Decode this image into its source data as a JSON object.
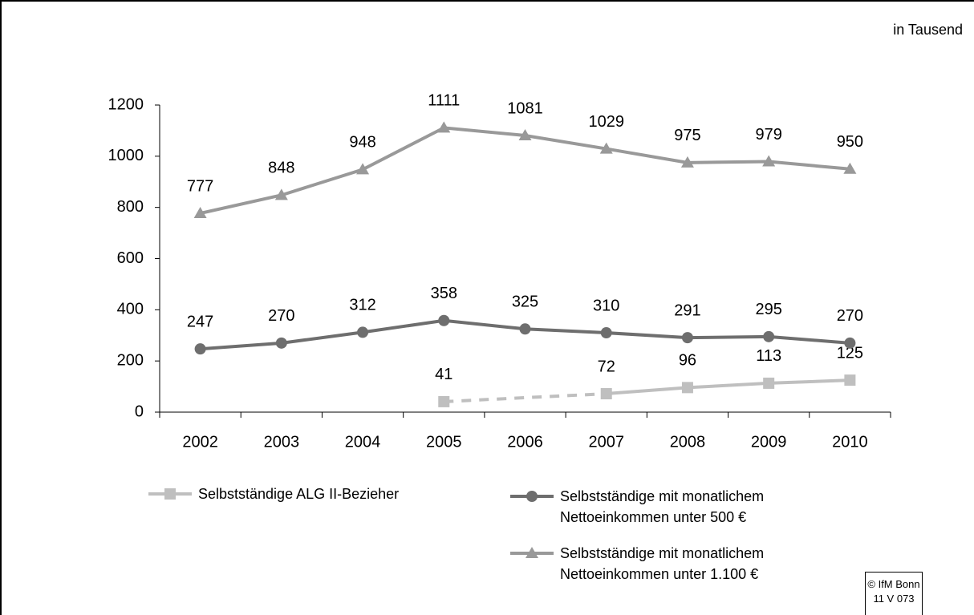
{
  "chart_data": {
    "type": "line",
    "unit_note": "in Tausend",
    "categories": [
      "2002",
      "2003",
      "2004",
      "2005",
      "2006",
      "2007",
      "2008",
      "2009",
      "2010"
    ],
    "series": [
      {
        "name": "Selbstständige ALG II-Bezieher",
        "color": "#bfbfbf",
        "marker": "square",
        "dashed_gaps": true,
        "values": [
          null,
          null,
          null,
          41,
          null,
          72,
          96,
          113,
          125
        ]
      },
      {
        "name": "Selbstständige mit monatlichem Nettoeinkommen unter 500 €",
        "color": "#6e6e6e",
        "marker": "circle",
        "values": [
          247,
          270,
          312,
          358,
          325,
          310,
          291,
          295,
          270
        ]
      },
      {
        "name": "Selbstständige mit monatlichem Nettoeinkommen unter 1.100 €",
        "color": "#999999",
        "marker": "triangle",
        "values": [
          777,
          848,
          948,
          1111,
          1081,
          1029,
          975,
          979,
          950
        ]
      }
    ],
    "ylim": [
      0,
      1200
    ],
    "yticks": [
      0,
      200,
      400,
      600,
      800,
      1000,
      1200
    ],
    "grid": false,
    "copyright": [
      "© IfM Bonn",
      "11 V 073"
    ]
  }
}
